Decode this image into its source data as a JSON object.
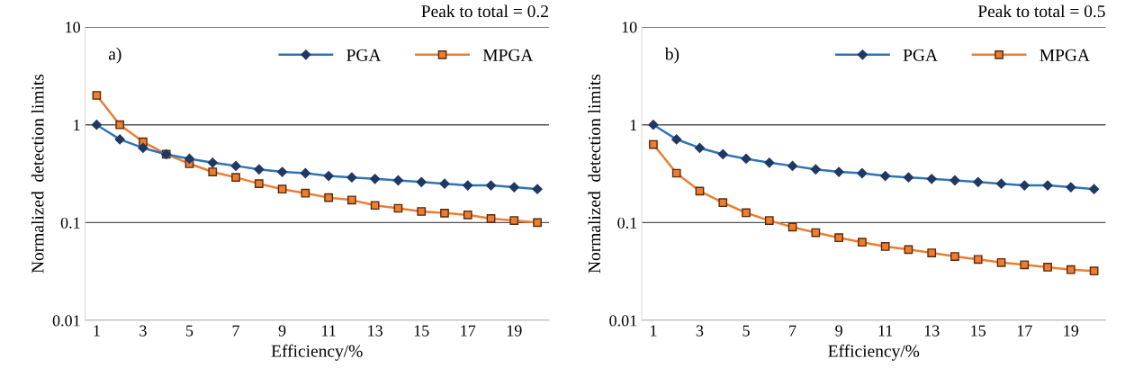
{
  "chart_data": [
    {
      "type": "line",
      "title": "Peak to total = 0.2",
      "xlabel": "Efficiency/%",
      "ylabel": "Normalized  detection limits",
      "annotations": [
        "a)"
      ],
      "x": [
        1,
        2,
        3,
        4,
        5,
        6,
        7,
        8,
        9,
        10,
        11,
        12,
        13,
        14,
        15,
        16,
        17,
        18,
        19,
        20
      ],
      "series": [
        {
          "name": "PGA",
          "color": "#2e75b6",
          "marker": "diamond",
          "values": [
            1.0,
            0.71,
            0.58,
            0.5,
            0.45,
            0.41,
            0.38,
            0.35,
            0.33,
            0.32,
            0.3,
            0.29,
            0.28,
            0.27,
            0.26,
            0.25,
            0.24,
            0.24,
            0.23,
            0.22
          ]
        },
        {
          "name": "MPGA",
          "color": "#ed7d31",
          "marker": "square",
          "values": [
            2.0,
            1.0,
            0.67,
            0.5,
            0.4,
            0.33,
            0.29,
            0.25,
            0.22,
            0.2,
            0.18,
            0.17,
            0.15,
            0.14,
            0.13,
            0.125,
            0.12,
            0.11,
            0.105,
            0.1
          ]
        }
      ],
      "log": "y",
      "ylim": [
        0.01,
        10
      ],
      "yticks": [
        0.01,
        0.1,
        1,
        10
      ],
      "xlim": [
        0.5,
        20.5
      ],
      "xticks": [
        1,
        3,
        5,
        7,
        9,
        11,
        13,
        15,
        17,
        19
      ],
      "grid": "y",
      "legend": "top right"
    },
    {
      "type": "line",
      "title": "Peak to total = 0.5",
      "xlabel": "Efficiency/%",
      "ylabel": "Normalized  detection limits",
      "annotations": [
        "b)"
      ],
      "x": [
        1,
        2,
        3,
        4,
        5,
        6,
        7,
        8,
        9,
        10,
        11,
        12,
        13,
        14,
        15,
        16,
        17,
        18,
        19,
        20
      ],
      "series": [
        {
          "name": "PGA",
          "color": "#2e75b6",
          "marker": "diamond",
          "values": [
            1.0,
            0.71,
            0.58,
            0.5,
            0.45,
            0.41,
            0.38,
            0.35,
            0.33,
            0.32,
            0.3,
            0.29,
            0.28,
            0.27,
            0.26,
            0.25,
            0.24,
            0.24,
            0.23,
            0.22
          ]
        },
        {
          "name": "MPGA",
          "color": "#ed7d31",
          "marker": "square",
          "values": [
            0.63,
            0.32,
            0.21,
            0.16,
            0.126,
            0.105,
            0.09,
            0.079,
            0.07,
            0.063,
            0.057,
            0.053,
            0.049,
            0.045,
            0.042,
            0.039,
            0.037,
            0.035,
            0.033,
            0.032
          ]
        }
      ],
      "log": "y",
      "ylim": [
        0.01,
        10
      ],
      "yticks": [
        0.01,
        0.1,
        1,
        10
      ],
      "xlim": [
        0.5,
        20.5
      ],
      "xticks": [
        1,
        3,
        5,
        7,
        9,
        11,
        13,
        15,
        17,
        19
      ],
      "grid": "y",
      "legend": "top right"
    }
  ]
}
